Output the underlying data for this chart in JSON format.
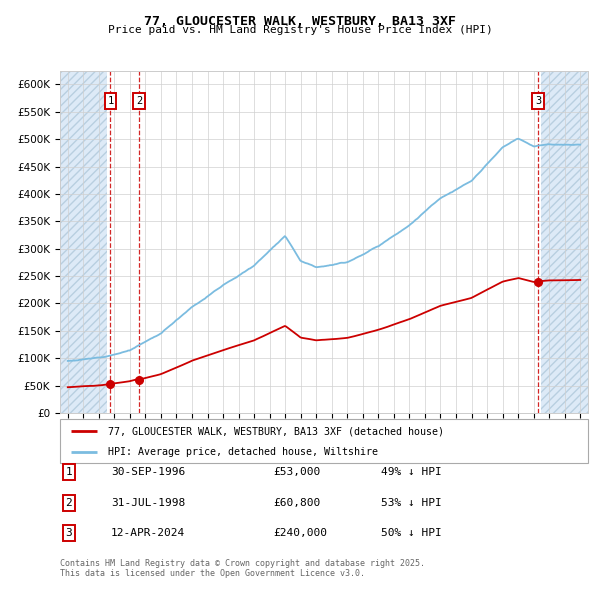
{
  "title": "77, GLOUCESTER WALK, WESTBURY, BA13 3XF",
  "subtitle": "Price paid vs. HM Land Registry's House Price Index (HPI)",
  "legend_line1": "77, GLOUCESTER WALK, WESTBURY, BA13 3XF (detached house)",
  "legend_line2": "HPI: Average price, detached house, Wiltshire",
  "footer1": "Contains HM Land Registry data © Crown copyright and database right 2025.",
  "footer2": "This data is licensed under the Open Government Licence v3.0.",
  "table": [
    {
      "num": "1",
      "date": "30-SEP-1996",
      "price": "£53,000",
      "pct": "49% ↓ HPI"
    },
    {
      "num": "2",
      "date": "31-JUL-1998",
      "price": "£60,800",
      "pct": "53% ↓ HPI"
    },
    {
      "num": "3",
      "date": "12-APR-2024",
      "price": "£240,000",
      "pct": "50% ↓ HPI"
    }
  ],
  "sale_points": [
    {
      "year": 1996.75,
      "value": 53000,
      "label": "1"
    },
    {
      "year": 1998.58,
      "value": 60800,
      "label": "2"
    },
    {
      "year": 2024.28,
      "value": 240000,
      "label": "3"
    }
  ],
  "vline_years": [
    1996.75,
    1998.58,
    2024.28
  ],
  "hpi_color": "#7bbce0",
  "price_color": "#cc0000",
  "vline_color": "#cc0000",
  "ylim": [
    0,
    625000
  ],
  "yticks": [
    0,
    50000,
    100000,
    150000,
    200000,
    250000,
    300000,
    350000,
    400000,
    450000,
    500000,
    550000,
    600000
  ],
  "xlim_start": 1993.5,
  "xlim_end": 2027.5,
  "hatch_left_x0": 1993.5,
  "hatch_left_x1": 1996.5,
  "hatch_right_x0": 2024.5,
  "hatch_right_x1": 2027.5
}
